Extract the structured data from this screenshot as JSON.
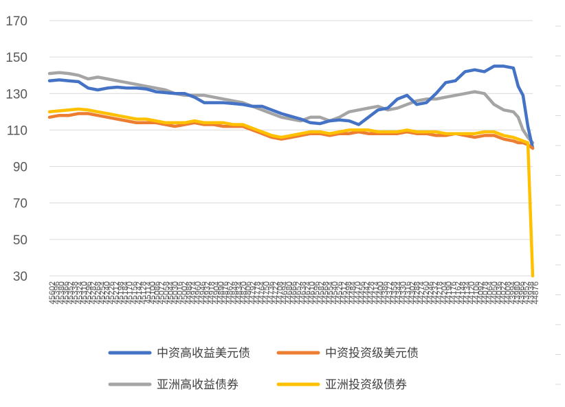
{
  "chart_data": {
    "type": "line",
    "title": "",
    "xlabel": "",
    "ylabel": "",
    "ylim": [
      30,
      170
    ],
    "yticks": [
      30,
      50,
      70,
      90,
      110,
      130,
      150,
      170
    ],
    "grid": "horizontal",
    "legend_position": "bottom",
    "x_tick_labels": [
      "45602",
      "45396",
      "45380",
      "45366",
      "45352",
      "45338",
      "45324",
      "45310",
      "45296",
      "45282",
      "45268",
      "45254",
      "45240",
      "45226",
      "45212",
      "45198",
      "45184",
      "45170",
      "45156",
      "45142",
      "45128",
      "45114",
      "45100",
      "45086",
      "45072",
      "45058",
      "45044",
      "45030",
      "45016",
      "45002",
      "44988",
      "44974",
      "44960",
      "44946",
      "44932",
      "44918",
      "44904",
      "44890",
      "44876",
      "44862",
      "44848",
      "44834",
      "44820",
      "44806",
      "44792",
      "44778",
      "44764",
      "44750",
      "44736",
      "44722",
      "44708",
      "44694",
      "44680",
      "44666",
      "44652",
      "44638",
      "44624",
      "44610",
      "44596",
      "44582",
      "44568",
      "44554",
      "44540",
      "44526",
      "44512",
      "44498",
      "44484",
      "44470",
      "44456",
      "44442",
      "44428",
      "44414",
      "44400",
      "44386",
      "44372",
      "44358",
      "44344",
      "44330",
      "44316",
      "44302",
      "44288",
      "44274",
      "44260",
      "44246",
      "44232",
      "44218",
      "44204",
      "44190",
      "44176",
      "44162",
      "44148",
      "44134",
      "44120",
      "44106",
      "44092",
      "44078",
      "44064",
      "44050",
      "44036",
      "44022",
      "44008",
      "43994",
      "43980",
      "43966",
      "43952",
      "43938",
      "44876"
    ],
    "x": [
      0,
      0.02,
      0.04,
      0.06,
      0.08,
      0.1,
      0.12,
      0.14,
      0.16,
      0.18,
      0.2,
      0.22,
      0.24,
      0.26,
      0.28,
      0.3,
      0.32,
      0.34,
      0.36,
      0.38,
      0.4,
      0.42,
      0.44,
      0.46,
      0.48,
      0.5,
      0.52,
      0.54,
      0.56,
      0.58,
      0.6,
      0.62,
      0.64,
      0.66,
      0.68,
      0.7,
      0.72,
      0.74,
      0.76,
      0.78,
      0.8,
      0.82,
      0.84,
      0.86,
      0.88,
      0.9,
      0.92,
      0.94,
      0.96,
      0.97,
      0.98,
      0.99,
      1.0
    ],
    "series": [
      {
        "name": "中资高收益美元债",
        "color": "#4472C4",
        "values": [
          137,
          137.5,
          137,
          136.5,
          133,
          132,
          133,
          133.5,
          133,
          133,
          132.5,
          131,
          130.5,
          130,
          130,
          128,
          125,
          125,
          125,
          124.5,
          124,
          123,
          123,
          121,
          119,
          117.5,
          116,
          114,
          113.5,
          115,
          115.5,
          115,
          113,
          117,
          121,
          122,
          127,
          129,
          124,
          125,
          130,
          136,
          137,
          142,
          143,
          142,
          145,
          145,
          144,
          134,
          129,
          112,
          100
        ]
      },
      {
        "name": "中资投资级美元债",
        "color": "#ED7D31",
        "values": [
          117,
          118,
          118,
          119,
          119,
          118,
          117,
          116,
          115,
          114,
          114,
          114,
          113,
          112,
          113,
          114,
          113,
          113,
          112,
          112,
          112,
          110,
          108,
          106,
          105,
          106,
          107,
          108,
          108,
          107,
          108,
          108,
          109,
          108,
          108,
          108,
          108,
          109,
          108,
          108,
          107,
          107,
          108,
          107,
          106,
          107,
          107,
          105,
          104,
          103,
          103,
          102,
          100
        ]
      },
      {
        "name": "亚洲高收益债券",
        "color": "#A5A5A5",
        "values": [
          141,
          141.5,
          141,
          140,
          138,
          139,
          138,
          137,
          136,
          135,
          134,
          133,
          132,
          130,
          129,
          129,
          129,
          128,
          127,
          126,
          125,
          123,
          121,
          119,
          117,
          116,
          115,
          117,
          117,
          115,
          117,
          120,
          121,
          122,
          123,
          121,
          122,
          124,
          126,
          127,
          127,
          128,
          129,
          130,
          131,
          130,
          124,
          121,
          120,
          117,
          110,
          106,
          103
        ]
      },
      {
        "name": "亚洲投资级债券",
        "color": "#FFC000",
        "values": [
          120,
          120.5,
          121,
          121.5,
          121,
          120,
          119,
          118,
          117,
          116,
          116,
          115,
          114,
          114,
          114,
          115,
          114,
          114,
          114,
          113,
          113,
          111,
          109,
          107,
          106,
          107,
          108,
          109,
          109,
          108,
          109,
          110,
          110,
          110,
          109,
          109,
          109,
          110,
          109,
          109,
          109,
          108,
          108,
          108,
          108,
          109,
          109,
          107,
          106,
          105,
          104,
          103,
          30
        ]
      }
    ]
  }
}
